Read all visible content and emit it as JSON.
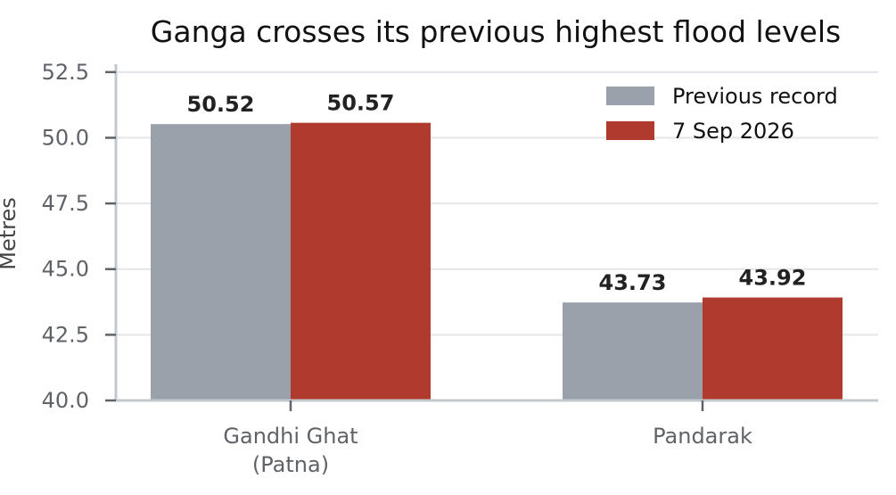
{
  "chart_data": {
    "type": "bar",
    "title": "Ganga crosses its previous highest flood levels",
    "xlabel": "",
    "ylabel": "Metres",
    "categories": [
      "Gandhi Ghat\n(Patna)",
      "Pandarak"
    ],
    "series": [
      {
        "name": "Previous record",
        "values": [
          50.52,
          43.73
        ],
        "color": "#9aa1aa"
      },
      {
        "name": "7 Sep 2026",
        "values": [
          50.57,
          43.92
        ],
        "color": "#b03a2e"
      }
    ],
    "data_labels": [
      [
        "50.52",
        "43.73"
      ],
      [
        "50.57",
        "43.92"
      ]
    ],
    "ylim": [
      40.0,
      52.8
    ],
    "yticks": [
      40.0,
      42.5,
      45.0,
      47.5,
      50.0,
      52.5
    ],
    "ytick_labels": [
      "40.0",
      "42.5",
      "45.0",
      "47.5",
      "50.0",
      "52.5"
    ],
    "grid": true,
    "legend_position": "top-right"
  }
}
